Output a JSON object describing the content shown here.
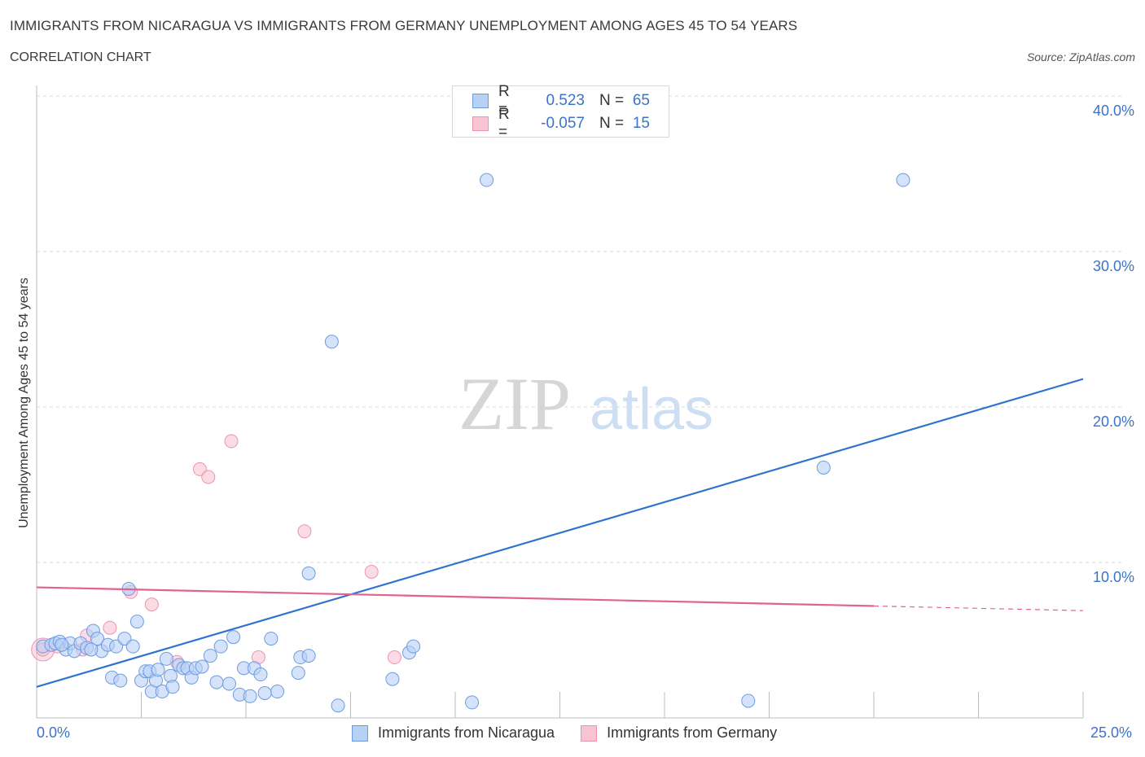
{
  "header": {
    "title": "IMMIGRANTS FROM NICARAGUA VS IMMIGRANTS FROM GERMANY UNEMPLOYMENT AMONG AGES 45 TO 54 YEARS",
    "subtitle": "CORRELATION CHART",
    "source": "Source: ZipAtlas.com"
  },
  "legend": {
    "nicaragua": {
      "r_label": "R =",
      "r_value": "0.523",
      "n_label": "N =",
      "n_value": "65"
    },
    "germany": {
      "r_label": "R =",
      "r_value": "-0.057",
      "n_label": "N =",
      "n_value": "15"
    }
  },
  "watermark": {
    "zip": "ZIP",
    "atlas": "atlas"
  },
  "colors": {
    "nicaragua_fill": "#b7d1f5",
    "nicaragua_stroke": "#6e9be0",
    "nicaragua_line": "#2f72d0",
    "germany_fill": "#f8c4d3",
    "germany_stroke": "#eb94ae",
    "germany_line": "#e0648f",
    "tick_text": "#3b73c8",
    "grid": "#d9d9d9"
  },
  "chart_data": {
    "type": "scatter",
    "title": "IMMIGRANTS FROM NICARAGUA VS IMMIGRANTS FROM GERMANY UNEMPLOYMENT AMONG AGES 45 TO 54 YEARS",
    "xlabel": "",
    "ylabel": "Unemployment Among Ages 45 to 54 years",
    "xlim": [
      0,
      25
    ],
    "ylim": [
      0,
      40
    ],
    "x_tick_labels": [
      "0.0%",
      "25.0%"
    ],
    "y_ticks": [
      10,
      20,
      30,
      40
    ],
    "y_tick_labels": [
      "10.0%",
      "20.0%",
      "30.0%",
      "40.0%"
    ],
    "grid": true,
    "legend_position": "top-center",
    "series": [
      {
        "name": "Immigrants from Nicaragua",
        "points": [
          [
            0.15,
            4.6
          ],
          [
            0.35,
            4.7
          ],
          [
            0.45,
            4.8
          ],
          [
            0.55,
            4.9
          ],
          [
            0.7,
            4.4
          ],
          [
            0.8,
            4.8
          ],
          [
            0.9,
            4.3
          ],
          [
            1.05,
            4.8
          ],
          [
            1.2,
            4.5
          ],
          [
            1.35,
            5.6
          ],
          [
            1.45,
            5.1
          ],
          [
            1.55,
            4.3
          ],
          [
            1.7,
            4.7
          ],
          [
            1.8,
            2.6
          ],
          [
            1.9,
            4.6
          ],
          [
            2.0,
            2.4
          ],
          [
            2.1,
            5.1
          ],
          [
            2.2,
            8.3
          ],
          [
            2.3,
            4.6
          ],
          [
            2.4,
            6.2
          ],
          [
            2.5,
            2.4
          ],
          [
            2.6,
            3.0
          ],
          [
            2.7,
            3.0
          ],
          [
            2.75,
            1.7
          ],
          [
            2.85,
            2.4
          ],
          [
            3.0,
            1.7
          ],
          [
            3.1,
            3.8
          ],
          [
            3.2,
            2.7
          ],
          [
            3.25,
            2.0
          ],
          [
            3.4,
            3.4
          ],
          [
            3.5,
            3.2
          ],
          [
            3.6,
            3.2
          ],
          [
            3.7,
            2.6
          ],
          [
            3.8,
            3.2
          ],
          [
            3.95,
            3.3
          ],
          [
            4.15,
            4.0
          ],
          [
            4.3,
            2.3
          ],
          [
            4.4,
            4.6
          ],
          [
            4.6,
            2.2
          ],
          [
            4.7,
            5.2
          ],
          [
            4.85,
            1.5
          ],
          [
            4.95,
            3.2
          ],
          [
            5.1,
            1.4
          ],
          [
            5.2,
            3.2
          ],
          [
            5.35,
            2.8
          ],
          [
            5.6,
            5.1
          ],
          [
            5.75,
            1.7
          ],
          [
            6.25,
            2.9
          ],
          [
            6.3,
            3.9
          ],
          [
            6.5,
            4.0
          ],
          [
            6.5,
            9.3
          ],
          [
            7.05,
            24.2
          ],
          [
            8.5,
            2.5
          ],
          [
            8.9,
            4.2
          ],
          [
            9.0,
            4.6
          ],
          [
            10.4,
            1.0
          ],
          [
            10.75,
            34.6
          ],
          [
            17.0,
            1.1
          ],
          [
            18.8,
            16.1
          ],
          [
            20.7,
            34.6
          ],
          [
            0.6,
            4.7
          ],
          [
            1.3,
            4.4
          ],
          [
            2.9,
            3.1
          ],
          [
            5.45,
            1.6
          ],
          [
            7.2,
            0.8
          ]
        ],
        "trend_line": [
          [
            0,
            2.0
          ],
          [
            25,
            21.8
          ]
        ]
      },
      {
        "name": "Immigrants from Germany",
        "points": [
          [
            0.15,
            4.4
          ],
          [
            0.5,
            4.6
          ],
          [
            1.1,
            4.4
          ],
          [
            1.2,
            5.3
          ],
          [
            1.75,
            5.8
          ],
          [
            2.25,
            8.1
          ],
          [
            2.75,
            7.3
          ],
          [
            3.35,
            3.6
          ],
          [
            3.9,
            16.0
          ],
          [
            4.1,
            15.5
          ],
          [
            4.65,
            17.8
          ],
          [
            5.3,
            3.9
          ],
          [
            6.4,
            12.0
          ],
          [
            8.0,
            9.4
          ],
          [
            8.55,
            3.9
          ]
        ],
        "trend_line": [
          [
            0,
            8.4
          ],
          [
            20,
            7.2
          ]
        ],
        "trend_line_dashed": [
          [
            20,
            7.2
          ],
          [
            25,
            6.9
          ]
        ]
      }
    ]
  }
}
